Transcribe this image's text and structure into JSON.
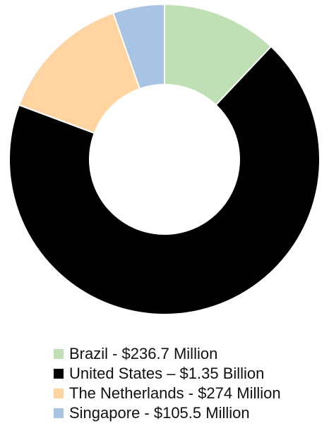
{
  "chart_data": {
    "type": "pie",
    "variant": "donut",
    "title": "",
    "legend_position": "bottom",
    "slices": [
      {
        "label": "Brazil - $236.7 Million",
        "value": 236.7,
        "color": "#bfe0b5"
      },
      {
        "label": "United States – $1.35 Billion",
        "value": 1350,
        "color": "#000000"
      },
      {
        "label": "The Netherlands - $274 Million",
        "value": 274,
        "color": "#ffd4a0"
      },
      {
        "label": "Singapore - $105.5 Million",
        "value": 105.5,
        "color": "#a7c4e4"
      }
    ]
  }
}
